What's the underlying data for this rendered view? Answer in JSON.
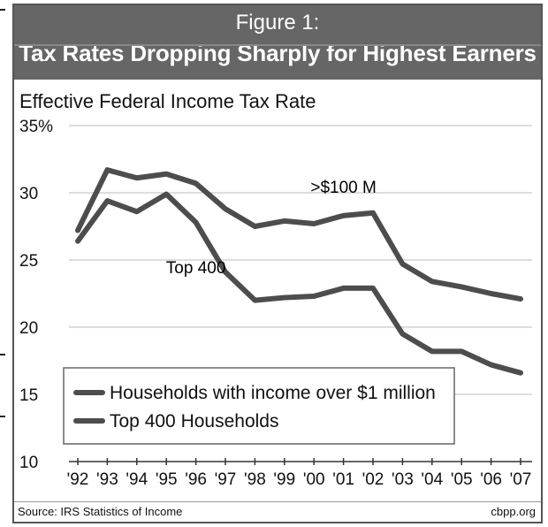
{
  "header": {
    "figure_label": "Figure 1:",
    "title": "Tax Rates Dropping Sharply for Highest Earners"
  },
  "footer": {
    "source": "Source: IRS Statistics of Income",
    "credit": "cbpp.org"
  },
  "chart_data": {
    "type": "line",
    "title": "Tax Rates Dropping Sharply for Highest Earners",
    "ylabel": "Effective Federal Income Tax Rate",
    "xlabel": "",
    "x": [
      "'92",
      "'93",
      "'94",
      "'95",
      "'96",
      "'97",
      "'98",
      "'99",
      "'00",
      "'01",
      "'02",
      "'03",
      "'04",
      "'05",
      "'06",
      "'07"
    ],
    "ylim": [
      10,
      35
    ],
    "yticks": [
      10,
      15,
      20,
      25,
      30,
      35
    ],
    "ytick_labels": [
      "10",
      "15",
      "20",
      "25",
      "30",
      "35%"
    ],
    "grid": true,
    "legend_position": "bottom-left",
    "series": [
      {
        "name": "Households with income over $1 million",
        "values": [
          27.2,
          31.7,
          31.1,
          31.4,
          30.7,
          28.8,
          27.5,
          27.9,
          27.7,
          28.3,
          28.5,
          24.7,
          23.4,
          23.0,
          22.5,
          22.1
        ],
        "color": "#4d4d4d"
      },
      {
        "name": "Top 400 Households",
        "values": [
          26.4,
          29.4,
          28.6,
          29.9,
          27.8,
          24.1,
          22.0,
          22.2,
          22.3,
          22.9,
          22.9,
          19.5,
          18.2,
          18.2,
          17.2,
          16.6
        ],
        "color": "#4d4d4d"
      }
    ],
    "annotations": [
      {
        "text": ">$100 M",
        "x": "'01",
        "y": 30.0
      },
      {
        "text": "Top 400",
        "x": "'96",
        "y": 24.0
      }
    ]
  }
}
